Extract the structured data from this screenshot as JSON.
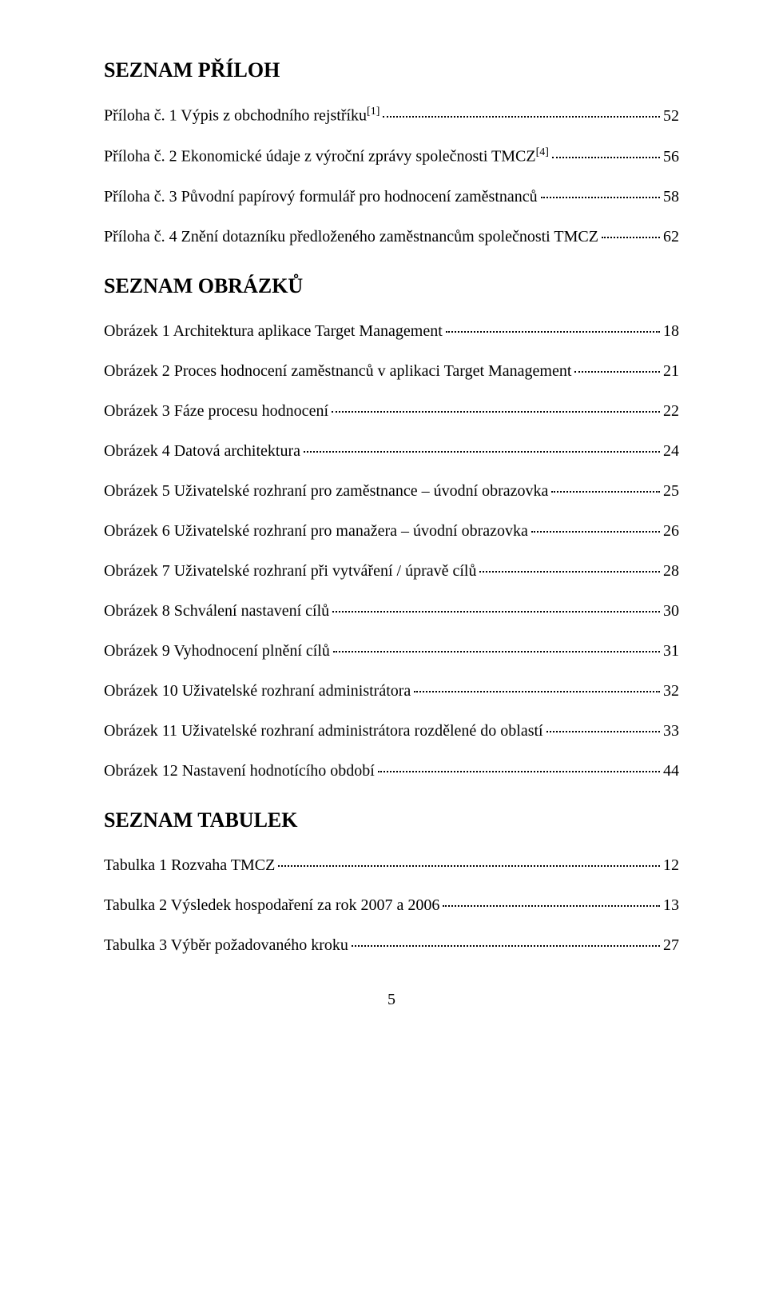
{
  "headings": {
    "seznam_priloh": "SEZNAM PŘÍLOH",
    "seznam_obrazku": "SEZNAM OBRÁZKŮ",
    "seznam_tabulek": "SEZNAM TABULEK"
  },
  "prilohy": [
    {
      "label": "Příloha č. 1 Výpis z obchodního rejstříku",
      "sup": "[1]",
      "page": "52"
    },
    {
      "label": "Příloha č. 2 Ekonomické údaje z výroční zprávy společnosti TMCZ",
      "sup": "[4]",
      "page": "56"
    },
    {
      "label": "Příloha č. 3 Původní papírový formulář pro hodnocení zaměstnanců",
      "sup": "",
      "page": "58"
    },
    {
      "label": "Příloha č. 4 Znění dotazníku předloženého zaměstnancům společnosti TMCZ",
      "sup": "",
      "page": "62"
    }
  ],
  "obrazky": [
    {
      "label": "Obrázek 1 Architektura aplikace Target Management",
      "page": "18"
    },
    {
      "label": "Obrázek 2 Proces hodnocení zaměstnanců v aplikaci Target Management",
      "page": "21"
    },
    {
      "label": "Obrázek 3 Fáze procesu hodnocení",
      "page": "22"
    },
    {
      "label": "Obrázek 4 Datová architektura",
      "page": "24"
    },
    {
      "label": "Obrázek 5 Uživatelské rozhraní pro zaměstnance – úvodní obrazovka",
      "page": "25"
    },
    {
      "label": "Obrázek 6 Uživatelské rozhraní pro manažera – úvodní obrazovka",
      "page": "26"
    },
    {
      "label": "Obrázek 7 Uživatelské rozhraní při vytváření / úpravě cílů",
      "page": "28"
    },
    {
      "label": "Obrázek 8 Schválení nastavení cílů",
      "page": "30"
    },
    {
      "label": "Obrázek 9 Vyhodnocení plnění cílů",
      "page": "31"
    },
    {
      "label": "Obrázek 10 Uživatelské rozhraní administrátora",
      "page": "32"
    },
    {
      "label": "Obrázek 11 Uživatelské rozhraní administrátora rozdělené do oblastí",
      "page": "33"
    },
    {
      "label": "Obrázek 12 Nastavení hodnotícího období",
      "page": "44"
    }
  ],
  "tabulky": [
    {
      "label": "Tabulka 1 Rozvaha TMCZ",
      "page": "12"
    },
    {
      "label": "Tabulka 2 Výsledek hospodaření za rok 2007 a 2006",
      "page": "13"
    },
    {
      "label": "Tabulka 3 Výběr požadovaného kroku",
      "page": "27"
    }
  ],
  "page_number": "5"
}
